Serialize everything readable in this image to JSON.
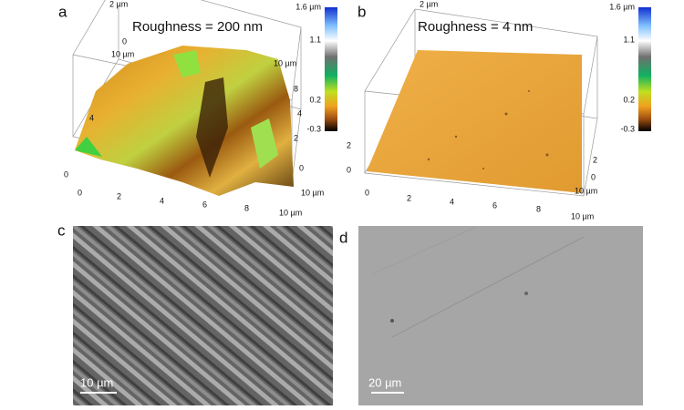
{
  "panels": [
    {
      "label": "a",
      "title": "Roughness = 200 nm",
      "z_label": "2 µm",
      "colorbar": [
        "1.6 µm",
        "1.1",
        "0.2",
        "-0.3"
      ],
      "x_ticks": [
        "0",
        "2",
        "4",
        "6",
        "8",
        "10 µm"
      ],
      "left_ticks": [
        "0",
        "4",
        "0",
        "10 µm"
      ],
      "right_ticks": [
        "10 µm",
        "8",
        "4",
        "2",
        "0",
        "10 µm"
      ]
    },
    {
      "label": "b",
      "title": "Roughness = 4 nm",
      "z_label": "2 µm",
      "colorbar": [
        "1.6 µm",
        "1.1",
        "0.2",
        "-0.3"
      ],
      "x_ticks": [
        "0",
        "2",
        "4",
        "6",
        "8",
        "10 µm"
      ],
      "left_ticks": [
        "0",
        "2"
      ],
      "right_ticks": [
        "2",
        "0",
        "10 µm"
      ]
    },
    {
      "label": "c",
      "scale_bar": "10 µm"
    },
    {
      "label": "d",
      "scale_bar": "20 µm"
    }
  ]
}
